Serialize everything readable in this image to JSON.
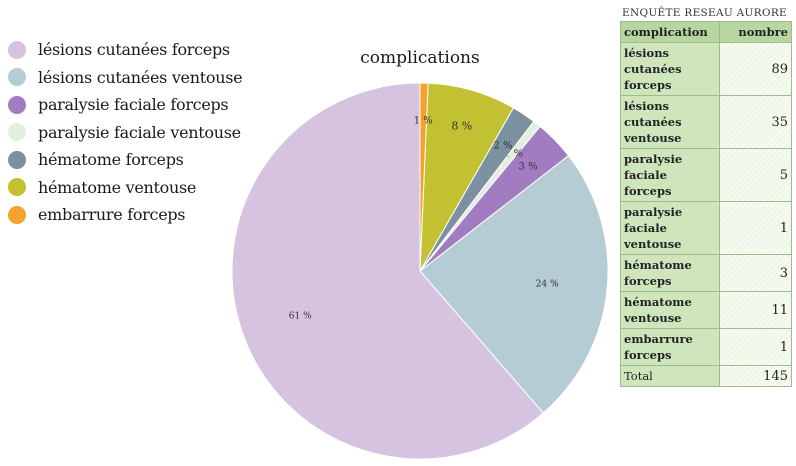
{
  "chart_data": {
    "type": "pie",
    "title": "complications",
    "legend_position": "left",
    "slices": [
      {
        "label": "lésions cutanées forceps",
        "value": 89,
        "percent_label": "61 %",
        "color": "#d5c3df"
      },
      {
        "label": "lésions cutanées ventouse",
        "value": 35,
        "percent_label": "24 %",
        "color": "#b6ccd4"
      },
      {
        "label": "paralysie faciale forceps",
        "value": 5,
        "percent_label": "3 %",
        "color": "#a27cc0"
      },
      {
        "label": "paralysie faciale ventouse",
        "value": 1,
        "percent_label": "1 %",
        "color": "#e3eee0"
      },
      {
        "label": "hématome forceps",
        "value": 3,
        "percent_label": "2 %",
        "color": "#7b91a2"
      },
      {
        "label": "hématome ventouse",
        "value": 11,
        "percent_label": "8 %",
        "color": "#c1c131"
      },
      {
        "label": "embarrure forceps",
        "value": 1,
        "percent_label": "1 %",
        "color": "#f5a12c"
      }
    ]
  },
  "table": {
    "title": "ENQUÊTE RESEAU AURORE",
    "headers": [
      "complication",
      "nombre"
    ],
    "rows": [
      {
        "name": "lésions cutanées forceps",
        "value": "89"
      },
      {
        "name": "lésions cutanées ventouse",
        "value": "35"
      },
      {
        "name": "paralysie faciale forceps",
        "value": "5"
      },
      {
        "name": "paralysie faciale ventouse",
        "value": "1"
      },
      {
        "name": "hématome forceps",
        "value": "3"
      },
      {
        "name": "hématome ventouse",
        "value": "11"
      },
      {
        "name": "embarrure forceps",
        "value": "1"
      }
    ],
    "total_label": "Total",
    "total_value": "145"
  }
}
